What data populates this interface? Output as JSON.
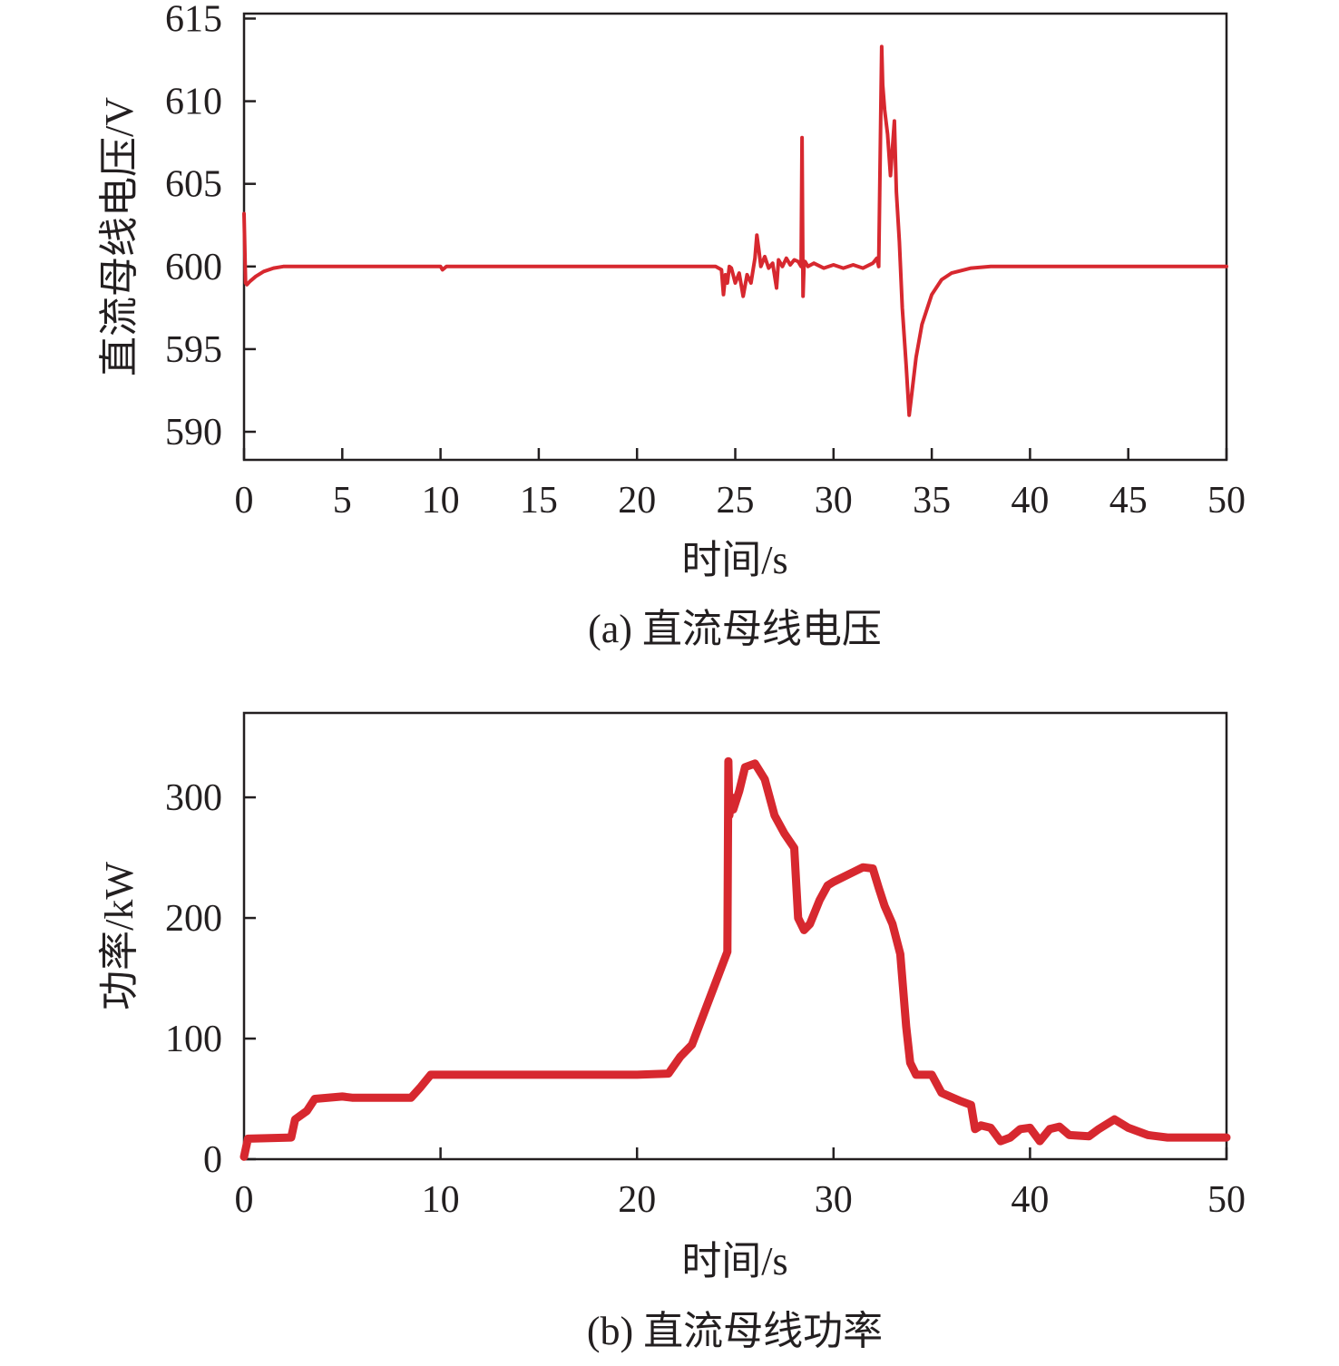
{
  "chart_data": [
    {
      "type": "line",
      "xlabel": "时间/s",
      "ylabel": "直流母线电压/V",
      "caption": "(a) 直流母线电压",
      "xlim": [
        0,
        50
      ],
      "ylim": [
        588.3,
        615.3
      ],
      "xticks": [
        0,
        5,
        10,
        15,
        20,
        25,
        30,
        35,
        40,
        45,
        50
      ],
      "yticks": [
        590,
        595,
        600,
        605,
        610,
        615
      ],
      "grid": false,
      "color": "#d7282f",
      "series": [
        {
          "x": [
            0,
            0.08,
            0.15,
            0.3,
            0.6,
            1.0,
            1.5,
            2.0,
            3.0,
            5.0,
            10.0,
            10.1,
            10.3,
            15.0,
            20.0,
            24.0,
            24.3,
            24.4,
            24.5,
            24.6,
            24.7,
            24.8,
            25.0,
            25.2,
            25.4,
            25.6,
            25.8,
            26.0,
            26.1,
            26.2,
            26.3,
            26.5,
            26.7,
            26.9,
            27.1,
            27.2,
            27.4,
            27.6,
            27.8,
            28.0,
            28.2,
            28.35,
            28.4,
            28.45,
            28.5,
            28.55,
            28.7,
            29.0,
            29.5,
            30.0,
            30.5,
            31.0,
            31.5,
            32.0,
            32.2,
            32.3,
            32.45,
            32.5,
            32.6,
            32.75,
            32.9,
            33.1,
            33.2,
            33.35,
            33.5,
            33.7,
            33.85,
            33.95,
            34.2,
            34.5,
            35.0,
            35.5,
            36.0,
            37.0,
            38.0,
            39.0,
            40.0,
            45.0,
            50.0
          ],
          "y": [
            603.2,
            599.0,
            598.9,
            599.1,
            599.4,
            599.7,
            599.9,
            600.0,
            600.0,
            600.0,
            600.0,
            599.8,
            600.0,
            600.0,
            600.0,
            600.0,
            599.8,
            598.3,
            599.5,
            599.0,
            600.0,
            599.9,
            599.0,
            599.6,
            598.2,
            599.5,
            599.0,
            600.5,
            601.9,
            601.0,
            600.0,
            600.6,
            599.9,
            600.2,
            598.7,
            600.4,
            600.0,
            600.5,
            600.1,
            600.4,
            600.3,
            600.0,
            607.8,
            598.2,
            600.1,
            600.3,
            600.0,
            600.2,
            599.9,
            600.1,
            599.9,
            600.1,
            599.9,
            600.2,
            600.5,
            600.0,
            613.3,
            611.0,
            609.5,
            608.0,
            605.5,
            608.8,
            604.5,
            601.5,
            597.5,
            594.0,
            591.0,
            592.0,
            594.5,
            596.5,
            598.3,
            599.2,
            599.6,
            599.9,
            600.0,
            600.0,
            600.0,
            600.0,
            600.0
          ]
        }
      ]
    },
    {
      "type": "line",
      "xlabel": "时间/s",
      "ylabel": "功率/kW",
      "caption": "(b) 直流母线功率",
      "xlim": [
        0,
        50
      ],
      "ylim": [
        0,
        370
      ],
      "xticks": [
        0,
        10,
        20,
        30,
        40,
        50
      ],
      "yticks": [
        0,
        100,
        200,
        300
      ],
      "grid": false,
      "color": "#d7282f",
      "series": [
        {
          "x": [
            0,
            0.2,
            2.4,
            2.6,
            3.2,
            3.6,
            5.0,
            5.5,
            8.5,
            9.0,
            9.5,
            20.0,
            21.6,
            22.2,
            22.8,
            23.5,
            24.2,
            24.6,
            24.65,
            24.7,
            24.8,
            24.9,
            25.2,
            25.5,
            26.0,
            26.5,
            27.0,
            27.5,
            28.0,
            28.2,
            28.5,
            28.8,
            29.3,
            29.7,
            30.0,
            31.0,
            31.5,
            32.0,
            32.3,
            32.6,
            33.0,
            33.4,
            33.7,
            33.9,
            34.2,
            35.0,
            35.5,
            36.5,
            37.0,
            37.2,
            37.5,
            38.0,
            38.5,
            39.0,
            39.5,
            40.0,
            40.5,
            41.0,
            41.5,
            42.0,
            43.0,
            43.5,
            44.3,
            45.0,
            46.0,
            47.0,
            50.0
          ],
          "y": [
            2,
            17,
            18,
            33,
            40,
            50,
            52,
            51,
            51,
            60,
            70,
            70,
            71,
            85,
            95,
            125,
            155,
            172,
            330,
            285,
            300,
            290,
            305,
            325,
            328,
            315,
            285,
            270,
            258,
            200,
            190,
            195,
            215,
            227,
            230,
            238,
            242,
            241,
            225,
            210,
            195,
            170,
            110,
            80,
            70,
            70,
            55,
            48,
            45,
            25,
            28,
            26,
            15,
            18,
            25,
            26,
            15,
            25,
            27,
            20,
            19,
            25,
            33,
            26,
            20,
            18,
            18
          ]
        }
      ]
    }
  ]
}
